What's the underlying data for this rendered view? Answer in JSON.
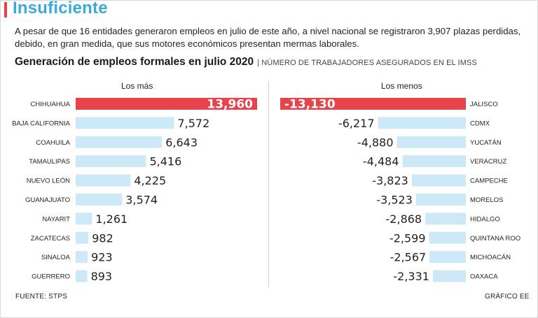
{
  "headline": "Insuficiente",
  "intro": "A pesar de que 16 entidades generaron empleos en julio de este año, a nivel nacional se registraron 3,907 plazas perdidas, debido, en gran medida, que sus motores económicos presentan mermas laborales.",
  "chart_title": "Generación de empleos formales en julio 2020",
  "chart_separator": "|",
  "chart_subtitle": "NÚMERO DE TRABAJADORES ASEGURADOS EN EL IMSS",
  "left_header": "Los más",
  "right_header": "Los menos",
  "source": "FUENTE: STPS",
  "credit": "GRÁFICO EE",
  "colors": {
    "headline": "#3aa9dc",
    "accent": "#e8434b",
    "bar": "#cde9f7",
    "bar_highlight": "#e8434b"
  },
  "chart_data": [
    {
      "type": "bar",
      "orientation": "horizontal",
      "title": "Los más",
      "categories": [
        "CHIHUAHUA",
        "BAJA CALIFORNIA",
        "COAHUILA",
        "TAMAULIPAS",
        "NUEVO LEÓN",
        "GUANAJUATO",
        "NAYARIT",
        "ZACATECAS",
        "SINALOA",
        "GUERRERO"
      ],
      "values": [
        13960,
        7572,
        6643,
        5416,
        4225,
        3574,
        1261,
        982,
        923,
        893
      ],
      "labels": [
        "13,960",
        "7,572",
        "6,643",
        "5,416",
        "4,225",
        "3,574",
        "1,261",
        "982",
        "923",
        "893"
      ],
      "highlight_index": 0,
      "xlim": [
        0,
        13960
      ]
    },
    {
      "type": "bar",
      "orientation": "horizontal",
      "title": "Los menos",
      "categories": [
        "JALISCO",
        "CDMX",
        "YUCATÁN",
        "VERACRUZ",
        "CAMPECHE",
        "MORELOS",
        "HIDALGO",
        "QUINTANA ROO",
        "MICHOACÁN",
        "OAXACA"
      ],
      "values": [
        -13130,
        -6217,
        -4880,
        -4484,
        -3823,
        -3523,
        -2868,
        -2599,
        -2567,
        -2331
      ],
      "labels": [
        "-13,130",
        "-6,217",
        "-4,880",
        "-4,484",
        "-3,823",
        "-3,523",
        "-2,868",
        "-2,599",
        "-2,567",
        "-2,331"
      ],
      "highlight_index": 0,
      "xlim": [
        -13130,
        0
      ]
    }
  ]
}
